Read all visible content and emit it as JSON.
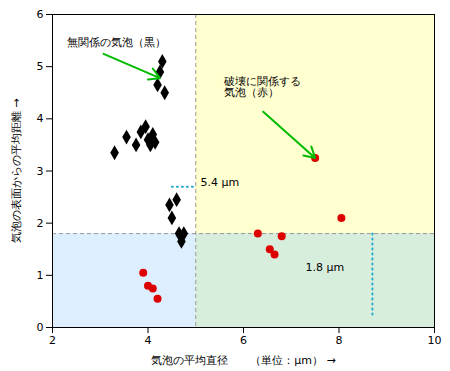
{
  "chart_data": {
    "type": "scatter",
    "xlabel": "気泡の平均直径　　（単位：μm）",
    "ylabel": "気泡の表面からの平均距離",
    "xlim": [
      2,
      10
    ],
    "ylim": [
      0,
      6
    ],
    "xticks": [
      2,
      4,
      6,
      8,
      10
    ],
    "yticks": [
      0,
      1,
      2,
      3,
      4,
      5,
      6
    ],
    "grid": false,
    "series": [
      {
        "color": "black",
        "marker": "diamond",
        "x": [
          3.3,
          3.55,
          3.75,
          3.85,
          3.95,
          4.0,
          4.05,
          4.1,
          4.15,
          4.2,
          4.25,
          4.3,
          4.35,
          4.45,
          4.5,
          4.6,
          4.65,
          4.7,
          4.75
        ],
        "y": [
          3.35,
          3.65,
          3.5,
          3.75,
          3.85,
          3.6,
          3.5,
          3.7,
          3.55,
          4.65,
          4.9,
          5.1,
          4.5,
          2.35,
          2.1,
          2.45,
          1.8,
          1.65,
          1.8
        ]
      },
      {
        "color": "#dd0000",
        "marker": "circle",
        "x": [
          3.9,
          4.0,
          4.1,
          4.2,
          6.3,
          6.55,
          6.65,
          6.8,
          7.5,
          8.05
        ],
        "y": [
          1.05,
          0.8,
          0.75,
          0.55,
          1.8,
          1.5,
          1.4,
          1.75,
          3.25,
          2.1
        ]
      }
    ],
    "quadrants": {
      "vline_x": 5.0,
      "hline_y": 1.8,
      "color": "#999999",
      "line_style": "dashed",
      "colors": {
        "top_left": "#ffffff",
        "top_right": "#ffffd0",
        "bottom_left": "#ddeeff",
        "bottom_right": "#d8eedd"
      }
    },
    "segments": {
      "color": "#22aacc",
      "line_style": "dotted",
      "lines": [
        {
          "x": [
            4.5,
            5.0
          ],
          "y": [
            2.7,
            2.7
          ]
        },
        {
          "x": [
            8.7,
            8.7
          ],
          "y": [
            1.8,
            0.25
          ]
        }
      ]
    },
    "annotations": {
      "arrow_color": "#00bb00",
      "items": [
        {
          "text": "無関係の気泡（黒）",
          "x": 2.3,
          "y": 5.55,
          "arrow_to": [
            4.25,
            4.78
          ]
        },
        {
          "text": "破壊に関係する\n気泡（赤）",
          "x": 5.6,
          "y": 4.8,
          "arrow_to": [
            7.5,
            3.25
          ]
        },
        {
          "text": "5.4 μm",
          "x": 5.1,
          "y": 2.78
        },
        {
          "text": "1.8 μm",
          "x": 7.3,
          "y": 1.15
        }
      ]
    }
  }
}
